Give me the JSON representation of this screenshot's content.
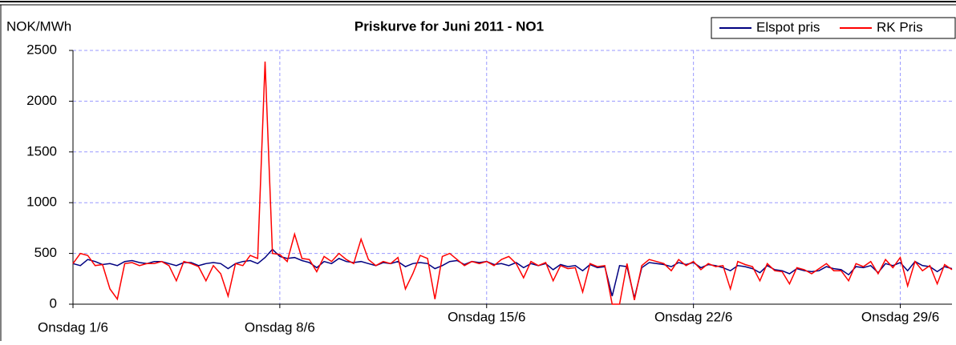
{
  "chart_data": {
    "type": "line",
    "title": "Priskurve for Juni 2011 - NO1",
    "y_label": "NOK/MWh",
    "x": [
      1,
      1.25,
      1.5,
      1.75,
      2,
      2.25,
      2.5,
      2.75,
      3,
      3.25,
      3.5,
      3.75,
      4,
      4.25,
      4.5,
      4.75,
      5,
      5.25,
      5.5,
      5.75,
      6,
      6.25,
      6.5,
      6.75,
      7,
      7.25,
      7.5,
      7.75,
      8,
      8.25,
      8.5,
      8.75,
      9,
      9.25,
      9.5,
      9.75,
      10,
      10.25,
      10.5,
      10.75,
      11,
      11.25,
      11.5,
      11.75,
      12,
      12.25,
      12.5,
      12.75,
      13,
      13.25,
      13.5,
      13.75,
      14,
      14.25,
      14.5,
      14.75,
      15,
      15.25,
      15.5,
      15.75,
      16,
      16.25,
      16.5,
      16.75,
      17,
      17.25,
      17.5,
      17.75,
      18,
      18.25,
      18.5,
      18.75,
      19,
      19.25,
      19.5,
      19.75,
      20,
      20.25,
      20.5,
      20.75,
      21,
      21.25,
      21.5,
      21.75,
      22,
      22.25,
      22.5,
      22.75,
      23,
      23.25,
      23.5,
      23.75,
      24,
      24.25,
      24.5,
      24.75,
      25,
      25.25,
      25.5,
      25.75,
      26,
      26.25,
      26.5,
      26.75,
      27,
      27.25,
      27.5,
      27.75,
      28,
      28.25,
      28.5,
      28.75,
      29,
      29.25,
      29.5,
      29.75,
      30,
      30.25,
      30.5,
      30.75
    ],
    "series": [
      {
        "name": "Elspot pris",
        "color": "#000080",
        "values": [
          400,
          380,
          440,
          420,
          390,
          400,
          380,
          420,
          430,
          410,
          400,
          420,
          420,
          400,
          380,
          410,
          410,
          380,
          400,
          410,
          400,
          350,
          400,
          420,
          430,
          400,
          460,
          540,
          470,
          450,
          460,
          430,
          410,
          360,
          420,
          400,
          450,
          420,
          410,
          420,
          400,
          380,
          410,
          400,
          420,
          370,
          400,
          410,
          400,
          350,
          380,
          420,
          430,
          390,
          420,
          410,
          420,
          390,
          400,
          380,
          410,
          360,
          400,
          380,
          400,
          340,
          390,
          370,
          380,
          330,
          390,
          360,
          370,
          80,
          380,
          370,
          60,
          360,
          410,
          400,
          390,
          370,
          410,
          390,
          410,
          360,
          390,
          380,
          360,
          330,
          380,
          370,
          350,
          310,
          380,
          340,
          330,
          300,
          350,
          330,
          320,
          330,
          370,
          350,
          340,
          290,
          370,
          360,
          380,
          310,
          400,
          380,
          410,
          330,
          420,
          380,
          370,
          320,
          370,
          350
        ]
      },
      {
        "name": "RK Pris",
        "color": "#ff0000",
        "values": [
          400,
          500,
          480,
          380,
          390,
          150,
          50,
          400,
          410,
          380,
          400,
          400,
          420,
          380,
          230,
          420,
          400,
          370,
          230,
          380,
          300,
          80,
          400,
          380,
          480,
          450,
          2390,
          500,
          490,
          420,
          690,
          450,
          440,
          320,
          470,
          420,
          500,
          440,
          400,
          640,
          440,
          380,
          420,
          400,
          460,
          150,
          300,
          480,
          450,
          50,
          470,
          500,
          440,
          380,
          420,
          400,
          420,
          380,
          440,
          470,
          400,
          260,
          420,
          380,
          410,
          230,
          380,
          350,
          360,
          120,
          400,
          370,
          380,
          0,
          0,
          400,
          40,
          380,
          440,
          420,
          400,
          330,
          440,
          380,
          420,
          340,
          400,
          370,
          380,
          150,
          420,
          390,
          370,
          230,
          400,
          330,
          320,
          200,
          360,
          340,
          300,
          350,
          400,
          330,
          330,
          230,
          400,
          370,
          420,
          300,
          440,
          360,
          460,
          180,
          420,
          330,
          380,
          200,
          390,
          340
        ]
      }
    ],
    "xlim": [
      1,
      30.75
    ],
    "xticks": [
      {
        "value": 1,
        "label": "Onsdag 1/6"
      },
      {
        "value": 8,
        "label": "Onsdag 8/6"
      },
      {
        "value": 15,
        "label": "Onsdag 15/6"
      },
      {
        "value": 22,
        "label": "Onsdag 22/6"
      },
      {
        "value": 29,
        "label": "Onsdag 29/6"
      }
    ],
    "ylim": [
      0,
      2500
    ],
    "yticks": [
      0,
      500,
      1000,
      1500,
      2000,
      2500
    ],
    "grid": true,
    "legend": "top-right"
  }
}
